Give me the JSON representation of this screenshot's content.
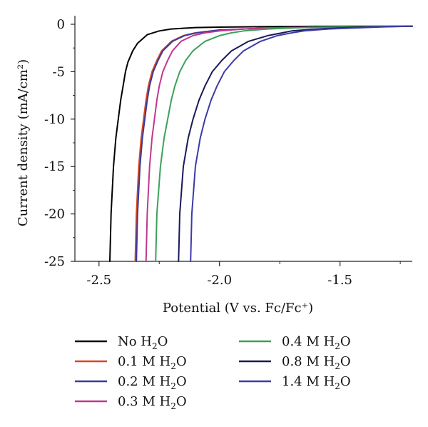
{
  "chart_data": {
    "type": "line",
    "title": "",
    "xlabel": "Potential (V vs. Fc/Fc⁺)",
    "ylabel": "Current density (mA/cm²)",
    "xlim": [
      -2.6,
      -1.2
    ],
    "ylim": [
      -25,
      1
    ],
    "x_ticks": [
      -2.5,
      -2.0,
      -1.5
    ],
    "x_tick_labels": [
      "-2.5",
      "-2.0",
      "-1.5"
    ],
    "y_ticks": [
      0,
      -5,
      -10,
      -15,
      -20,
      -25
    ],
    "y_tick_labels": [
      "0",
      "-5",
      "-10",
      "-15",
      "-20",
      "-25"
    ],
    "grid": false,
    "legend_placement": "bottom",
    "series": [
      {
        "name": "No H2O",
        "legend": {
          "prefix": "No H",
          "sub": "2",
          "suffix": "O"
        },
        "color": "#000000",
        "x": [
          -2.455,
          -2.45,
          -2.44,
          -2.43,
          -2.42,
          -2.41,
          -2.4,
          -2.39,
          -2.38,
          -2.36,
          -2.34,
          -2.3,
          -2.25,
          -2.2,
          -2.1,
          -2.0,
          -1.8,
          -1.6,
          -1.4,
          -1.2
        ],
        "y": [
          -25.0,
          -20.0,
          -15.0,
          -12.0,
          -10.0,
          -8.0,
          -6.5,
          -5.0,
          -4.0,
          -2.8,
          -2.0,
          -1.1,
          -0.7,
          -0.5,
          -0.35,
          -0.3,
          -0.25,
          -0.22,
          -0.2,
          -0.2
        ]
      },
      {
        "name": "0.1 M H2O",
        "legend": {
          "prefix": "0.1 M H",
          "sub": "2",
          "suffix": "O"
        },
        "color": "#d9471f",
        "x": [
          -2.35,
          -2.345,
          -2.335,
          -2.325,
          -2.315,
          -2.305,
          -2.295,
          -2.28,
          -2.26,
          -2.24,
          -2.2,
          -2.15,
          -2.1,
          -2.0,
          -1.9,
          -1.8,
          -1.6,
          -1.4,
          -1.2
        ],
        "y": [
          -25.0,
          -20.0,
          -15.0,
          -12.0,
          -10.0,
          -8.0,
          -6.5,
          -5.0,
          -3.8,
          -2.8,
          -1.8,
          -1.2,
          -0.9,
          -0.6,
          -0.5,
          -0.4,
          -0.3,
          -0.25,
          -0.2
        ]
      },
      {
        "name": "0.2 M H2O",
        "legend": {
          "prefix": "0.2 M H",
          "sub": "2",
          "suffix": "O"
        },
        "color": "#3a3a9e",
        "x": [
          -2.345,
          -2.34,
          -2.33,
          -2.32,
          -2.31,
          -2.3,
          -2.29,
          -2.275,
          -2.255,
          -2.235,
          -2.195,
          -2.145,
          -2.095,
          -2.0,
          -1.9,
          -1.8,
          -1.6,
          -1.4,
          -1.2
        ],
        "y": [
          -25.0,
          -20.0,
          -15.0,
          -12.0,
          -10.0,
          -8.0,
          -6.5,
          -5.0,
          -3.8,
          -2.8,
          -1.8,
          -1.2,
          -0.9,
          -0.6,
          -0.5,
          -0.4,
          -0.3,
          -0.25,
          -0.2
        ]
      },
      {
        "name": "0.3 M H2O",
        "legend": {
          "prefix": "0.3 M H",
          "sub": "2",
          "suffix": "O"
        },
        "color": "#c0388e",
        "x": [
          -2.305,
          -2.3,
          -2.29,
          -2.28,
          -2.27,
          -2.26,
          -2.25,
          -2.235,
          -2.215,
          -2.195,
          -2.16,
          -2.11,
          -2.06,
          -2.0,
          -1.9,
          -1.8,
          -1.6,
          -1.4,
          -1.2
        ],
        "y": [
          -25.0,
          -20.0,
          -15.0,
          -12.0,
          -10.0,
          -8.0,
          -6.5,
          -5.0,
          -3.8,
          -2.8,
          -1.8,
          -1.2,
          -0.9,
          -0.7,
          -0.5,
          -0.4,
          -0.3,
          -0.25,
          -0.2
        ]
      },
      {
        "name": "0.4 M H2O",
        "legend": {
          "prefix": "0.4 M H",
          "sub": "2",
          "suffix": "O"
        },
        "color": "#3aa15a",
        "x": [
          -2.265,
          -2.26,
          -2.245,
          -2.23,
          -2.215,
          -2.2,
          -2.185,
          -2.165,
          -2.14,
          -2.11,
          -2.06,
          -2.0,
          -1.95,
          -1.9,
          -1.8,
          -1.7,
          -1.6,
          -1.4,
          -1.2
        ],
        "y": [
          -25.0,
          -20.0,
          -15.0,
          -12.0,
          -10.0,
          -8.0,
          -6.5,
          -5.0,
          -3.8,
          -2.8,
          -1.8,
          -1.2,
          -0.9,
          -0.7,
          -0.5,
          -0.4,
          -0.3,
          -0.25,
          -0.2
        ]
      },
      {
        "name": "0.8 M H2O",
        "legend": {
          "prefix": "0.8 M H",
          "sub": "2",
          "suffix": "O"
        },
        "color": "#1a1a5a",
        "x": [
          -2.17,
          -2.165,
          -2.15,
          -2.13,
          -2.11,
          -2.085,
          -2.06,
          -2.03,
          -1.99,
          -1.95,
          -1.88,
          -1.8,
          -1.74,
          -1.7,
          -1.6,
          -1.5,
          -1.4,
          -1.3,
          -1.2
        ],
        "y": [
          -25.0,
          -20.0,
          -15.0,
          -12.0,
          -10.0,
          -8.0,
          -6.5,
          -5.0,
          -3.8,
          -2.8,
          -1.8,
          -1.2,
          -0.9,
          -0.7,
          -0.5,
          -0.4,
          -0.3,
          -0.25,
          -0.2
        ]
      },
      {
        "name": "1.4 M H2O",
        "legend": {
          "prefix": "1.4 M H",
          "sub": "2",
          "suffix": "O"
        },
        "color": "#3d3aa8",
        "x": [
          -2.12,
          -2.115,
          -2.1,
          -2.08,
          -2.06,
          -2.035,
          -2.01,
          -1.98,
          -1.94,
          -1.9,
          -1.83,
          -1.76,
          -1.7,
          -1.65,
          -1.55,
          -1.45,
          -1.35,
          -1.28,
          -1.2
        ],
        "y": [
          -25.0,
          -20.0,
          -15.0,
          -12.0,
          -10.0,
          -8.0,
          -6.5,
          -5.0,
          -3.8,
          -2.8,
          -1.8,
          -1.2,
          -0.9,
          -0.7,
          -0.5,
          -0.4,
          -0.3,
          -0.25,
          -0.2
        ]
      }
    ]
  }
}
